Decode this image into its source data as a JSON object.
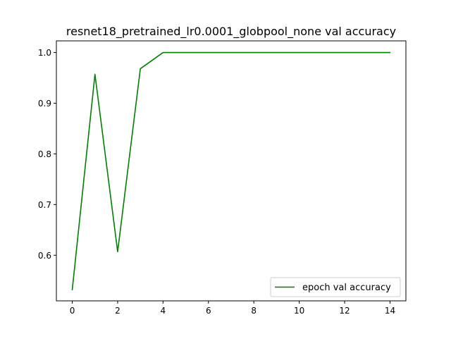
{
  "chart_data": {
    "type": "line",
    "title": "resnet18_pretrained_lr0.0001_globpool_none val accuracy",
    "xlabel": "",
    "ylabel": "",
    "xlim": [
      -0.7,
      14.7
    ],
    "ylim": [
      0.51,
      1.023
    ],
    "x_ticks": [
      0,
      2,
      4,
      6,
      8,
      10,
      12,
      14
    ],
    "y_ticks": [
      0.6,
      0.7,
      0.8,
      0.9,
      1.0
    ],
    "x_tick_labels": [
      "0",
      "2",
      "4",
      "6",
      "8",
      "10",
      "12",
      "14"
    ],
    "y_tick_labels": [
      "0.6",
      "0.7",
      "0.8",
      "0.9",
      "1.0"
    ],
    "grid": false,
    "legend_position": "lower-right",
    "series": [
      {
        "name": "epoch val accuracy",
        "color": "#008000",
        "x": [
          0,
          1,
          2,
          3,
          4,
          5,
          6,
          7,
          8,
          9,
          10,
          11,
          12,
          13,
          14
        ],
        "values": [
          0.532,
          0.957,
          0.607,
          0.968,
          1.0,
          1.0,
          1.0,
          1.0,
          1.0,
          1.0,
          1.0,
          1.0,
          1.0,
          1.0,
          1.0
        ]
      }
    ]
  }
}
